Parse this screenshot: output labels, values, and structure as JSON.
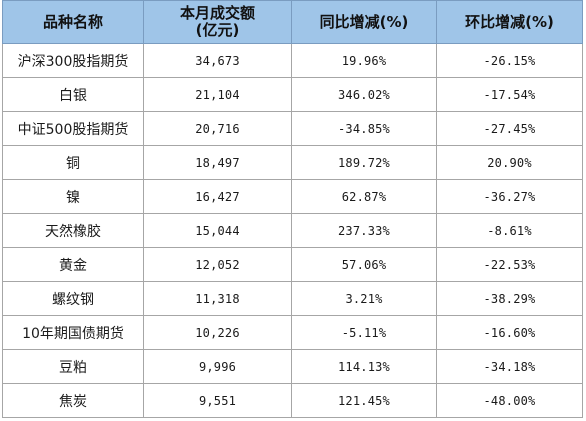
{
  "table": {
    "headers": {
      "col1": "品种名称",
      "col2_line1": "本月成交额",
      "col2_line2": "(亿元)",
      "col3": "同比增减(%)",
      "col4": "环比增减(%)"
    },
    "rows": [
      {
        "name": "沪深300股指期货",
        "amount": "34,673",
        "yoy": "19.96%",
        "mom": "-26.15%"
      },
      {
        "name": "白银",
        "amount": "21,104",
        "yoy": "346.02%",
        "mom": "-17.54%"
      },
      {
        "name": "中证500股指期货",
        "amount": "20,716",
        "yoy": "-34.85%",
        "mom": "-27.45%"
      },
      {
        "name": "铜",
        "amount": "18,497",
        "yoy": "189.72%",
        "mom": "20.90%"
      },
      {
        "name": "镍",
        "amount": "16,427",
        "yoy": "62.87%",
        "mom": "-36.27%"
      },
      {
        "name": "天然橡胶",
        "amount": "15,044",
        "yoy": "237.33%",
        "mom": "-8.61%"
      },
      {
        "name": "黄金",
        "amount": "12,052",
        "yoy": "57.06%",
        "mom": "-22.53%"
      },
      {
        "name": "螺纹钢",
        "amount": "11,318",
        "yoy": "3.21%",
        "mom": "-38.29%"
      },
      {
        "name": "10年期国债期货",
        "amount": "10,226",
        "yoy": "-5.11%",
        "mom": "-16.60%"
      },
      {
        "name": "豆粕",
        "amount": "9,996",
        "yoy": "114.13%",
        "mom": "-34.18%"
      },
      {
        "name": "焦炭",
        "amount": "9,551",
        "yoy": "121.45%",
        "mom": "-48.00%"
      }
    ]
  },
  "colors": {
    "header_bg": "#9fc5e8",
    "grid": "#a6a6a6"
  }
}
